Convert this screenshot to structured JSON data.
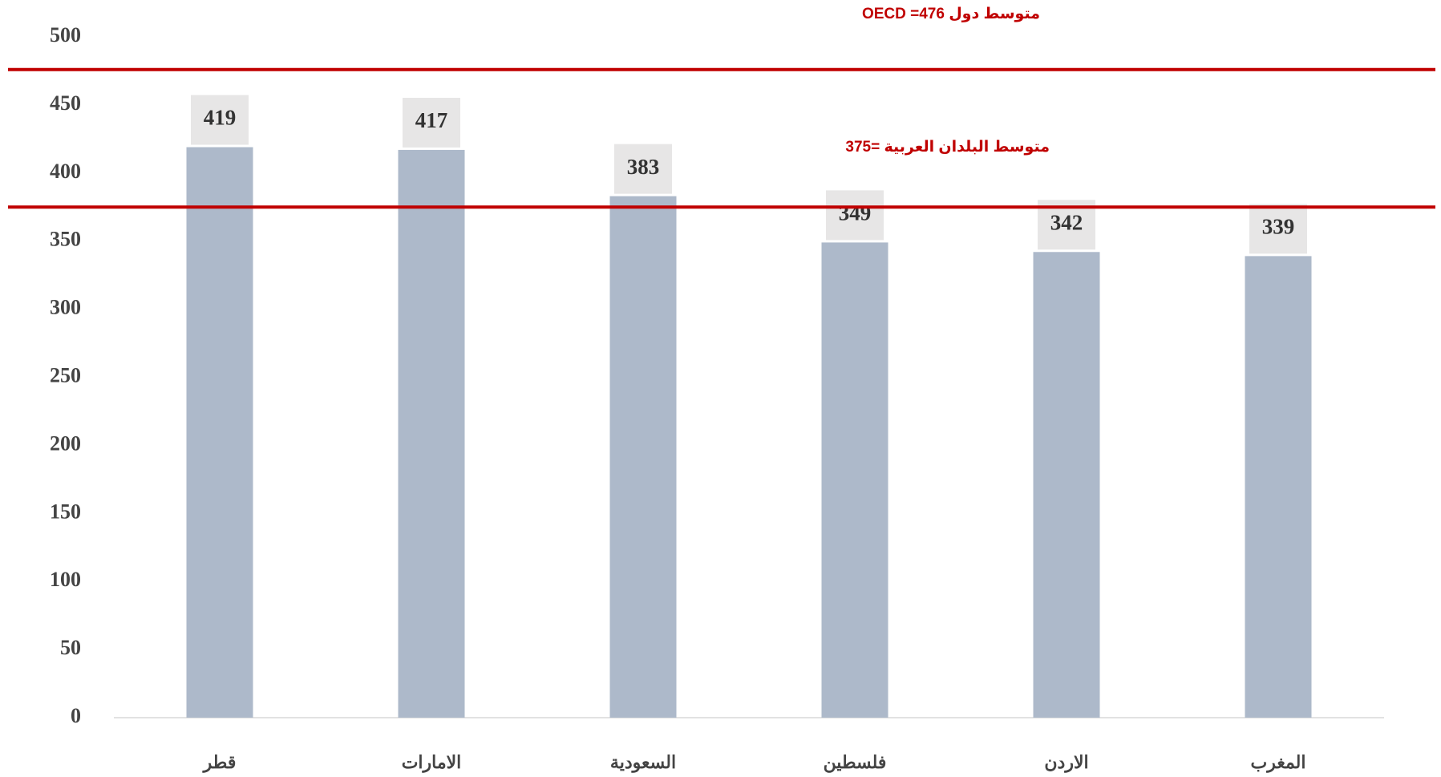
{
  "chart_data": {
    "type": "bar",
    "categories": [
      "قطر",
      "الامارات",
      "السعودية",
      "فلسطين",
      "الاردن",
      "المغرب"
    ],
    "values": [
      419,
      417,
      383,
      349,
      342,
      339
    ],
    "color": "#adb9ca",
    "ylim": [
      0,
      500
    ],
    "yticks": [
      0,
      50,
      100,
      150,
      200,
      250,
      300,
      350,
      400,
      450,
      500
    ],
    "reference_lines": [
      {
        "label": "متوسط دول OECD =476",
        "value": 476,
        "color": "#c00000"
      },
      {
        "label": "متوسط البلدان العربية =375",
        "value": 375,
        "color": "#c00000"
      }
    ]
  }
}
